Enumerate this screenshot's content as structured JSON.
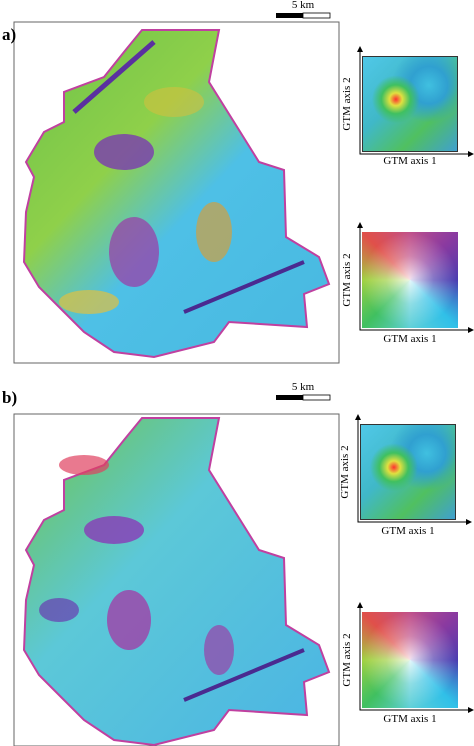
{
  "panels": [
    {
      "label": "a)",
      "scale_bar": "5 km",
      "gtm_map": {
        "x_label": "GTM axis 1",
        "y_label": "GTM axis 2"
      },
      "color_key": {
        "x_label": "GTM axis 1",
        "y_label": "GTM axis 2"
      }
    },
    {
      "label": "b)",
      "scale_bar": "5 km",
      "gtm_map": {
        "x_label": "GTM axis 1",
        "y_label": "GTM axis 2"
      },
      "color_key": {
        "x_label": "GTM axis 1",
        "y_label": "GTM axis 2"
      }
    }
  ]
}
